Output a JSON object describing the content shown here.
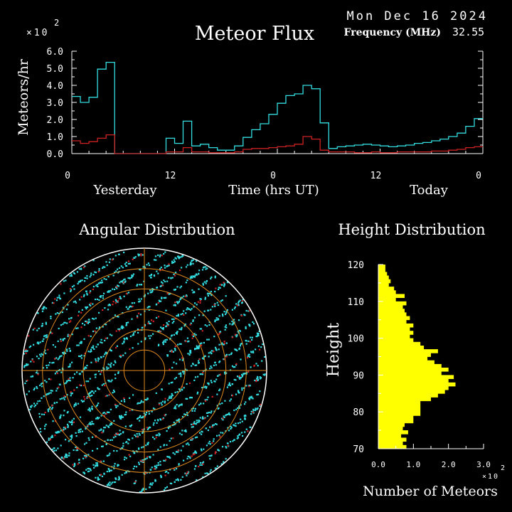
{
  "header": {
    "date": "Mon Dec 16 2024",
    "frequency_label": "Frequency (MHz)",
    "frequency_value": "32.55",
    "multiplier_base": "×10",
    "multiplier_exp": "2"
  },
  "colors": {
    "background": "#000000",
    "axes": "#ffffff",
    "total_flux": "#33dde0",
    "underdense_flux": "#cc2222",
    "polar_rings": "#e08a1e",
    "height_bars": "#ffff00"
  },
  "chart_data": [
    {
      "type": "line",
      "title": "Meteor Flux",
      "xlabel": "Time (hrs UT)",
      "ylabel": "Meteors/hr",
      "y_multiplier": "×10 2",
      "ylim": [
        0,
        6
      ],
      "yticks": [
        "0.0",
        "1.0",
        "2.0",
        "3.0",
        "4.0",
        "5.0",
        "6.0"
      ],
      "xticks": [
        "0",
        "12",
        "0",
        "12",
        "0"
      ],
      "day_labels": [
        "Yesterday",
        "Today"
      ],
      "xlim": [
        0,
        48
      ],
      "step": "hourly",
      "series": [
        {
          "color": "#33dde0",
          "values": [
            3.35,
            3.0,
            3.3,
            4.95,
            5.35,
            0.0,
            0.0,
            0.0,
            0.0,
            0.0,
            0.0,
            0.9,
            0.6,
            1.9,
            0.45,
            0.55,
            0.35,
            0.2,
            0.2,
            0.45,
            0.95,
            1.4,
            1.75,
            2.3,
            2.95,
            3.4,
            3.5,
            4.0,
            3.8,
            1.8,
            0.3,
            0.4,
            0.45,
            0.5,
            0.55,
            0.5,
            0.45,
            0.4,
            0.45,
            0.5,
            0.6,
            0.65,
            0.75,
            0.85,
            1.0,
            1.2,
            1.6,
            2.05
          ]
        },
        {
          "color": "#cc2222",
          "values": [
            0.75,
            0.6,
            0.7,
            0.9,
            1.1,
            0.0,
            0.0,
            0.0,
            0.0,
            0.0,
            0.0,
            0.1,
            0.1,
            0.35,
            0.1,
            0.1,
            0.05,
            0.05,
            0.05,
            0.1,
            0.25,
            0.3,
            0.3,
            0.35,
            0.4,
            0.45,
            0.55,
            1.0,
            0.85,
            0.2,
            0.1,
            0.1,
            0.1,
            0.05,
            0.05,
            0.1,
            0.05,
            0.05,
            0.1,
            0.1,
            0.1,
            0.1,
            0.15,
            0.15,
            0.2,
            0.25,
            0.35,
            0.4
          ]
        }
      ]
    },
    {
      "type": "scatter",
      "title": "Angular Distribution",
      "projection": "polar",
      "rings": 6,
      "grid": true,
      "series_colors": [
        "#33dde0",
        "#cc2222"
      ]
    },
    {
      "type": "bar",
      "orientation": "horizontal",
      "title": "Height Distribution",
      "xlabel": "Number of Meteors",
      "ylabel": "Height",
      "x_multiplier": "×10 2",
      "xlim": [
        0,
        3
      ],
      "xticks": [
        "0.0",
        "1.0",
        "2.0",
        "3.0"
      ],
      "ylim": [
        70,
        120
      ],
      "yticks": [
        "70",
        "80",
        "90",
        "100",
        "110",
        "120"
      ],
      "bin_start": 70,
      "bin_width": 1,
      "values": [
        0.8,
        0.7,
        0.8,
        0.65,
        0.85,
        0.7,
        0.75,
        1.0,
        1.0,
        1.2,
        1.2,
        1.2,
        1.2,
        1.5,
        1.7,
        1.9,
        2.0,
        2.2,
        2.0,
        2.15,
        1.8,
        2.0,
        1.8,
        1.6,
        1.4,
        1.5,
        1.7,
        1.3,
        1.2,
        1.0,
        0.9,
        1.0,
        0.9,
        1.0,
        0.8,
        0.9,
        0.8,
        0.75,
        0.7,
        0.8,
        0.5,
        0.75,
        0.5,
        0.45,
        0.3,
        0.35,
        0.3,
        0.25,
        0.2,
        0.2
      ]
    }
  ]
}
